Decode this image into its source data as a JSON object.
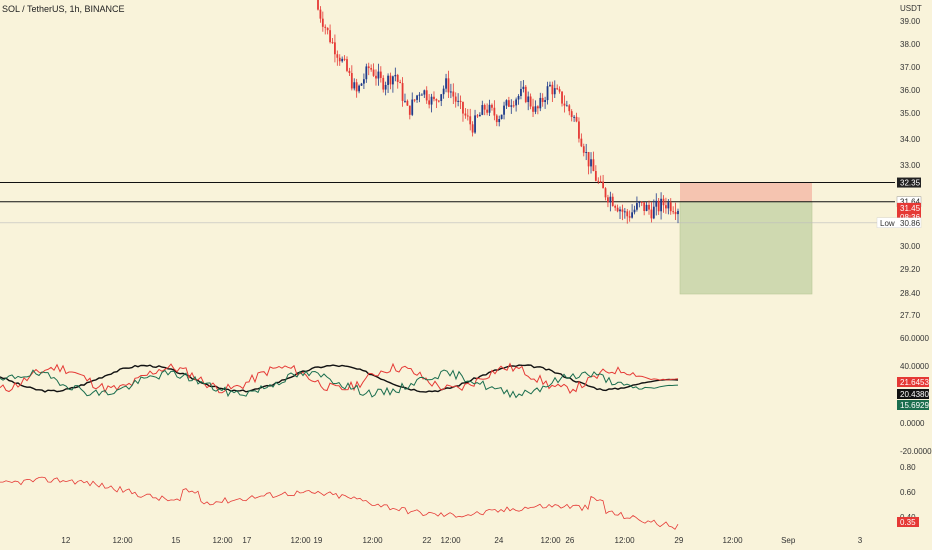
{
  "header": {
    "symbol_title": "SOL / TetherUS, 1h, BINANCE",
    "currency": "USDT"
  },
  "colors": {
    "background": "#f9f3da",
    "bull_candle": "#1e3a8a",
    "bear_candle": "#e53935",
    "stop_zone": "#f5c4b0",
    "target_zone": "#cfd9b0",
    "black_line": "#111111",
    "green_line": "#1b6e4f",
    "red_line": "#e53935"
  },
  "price_axis": {
    "ticks": [
      "39.00",
      "38.00",
      "37.00",
      "36.00",
      "35.00",
      "34.00",
      "33.00",
      "30.00",
      "29.20",
      "28.40",
      "27.70"
    ],
    "horizontal_levels": [
      32.35,
      31.64
    ],
    "low_line": 30.86,
    "tags": [
      {
        "text": "32.35",
        "style": "dark",
        "price": 32.35
      },
      {
        "text": "31.64",
        "style": "light",
        "price": 31.64
      },
      {
        "text": "31.45",
        "style": "red",
        "price": 31.45
      },
      {
        "text": "08:36",
        "style": "red-sub",
        "price": 31.45
      }
    ],
    "low_label": {
      "label": "Low",
      "value": "30.86"
    }
  },
  "position": {
    "entry": 31.64,
    "stop": 32.35,
    "target": 28.4
  },
  "indicator_1": {
    "ticks": [
      "60.0000",
      "40.0000",
      "0.0000",
      "-20.0000"
    ],
    "tags": [
      {
        "text": "21.6453",
        "style": "red"
      },
      {
        "text": "20.4380",
        "style": "black"
      },
      {
        "text": "15.6929",
        "style": "green"
      }
    ]
  },
  "indicator_2": {
    "ticks": [
      "0.80",
      "0.60",
      "0.40"
    ],
    "tags": [
      {
        "text": "0.35",
        "style": "red"
      }
    ]
  },
  "time_axis": {
    "labels": [
      "12",
      "12:00",
      "15",
      "12:00",
      "17",
      "12:00",
      "19",
      "12:00",
      "22",
      "12:00",
      "24",
      "12:00",
      "26",
      "12:00",
      "29",
      "12:00",
      "Sep",
      "3"
    ]
  },
  "chart_data": {
    "type": "candlestick",
    "series": [
      {
        "name": "candles",
        "close": [
          39.5,
          38.2,
          37.2,
          36.0,
          37.1,
          36.4,
          36.8,
          35.2,
          36.2,
          35.6,
          36.4,
          35.4,
          34.6,
          35.4,
          35.0,
          35.7,
          36.0,
          35.2,
          36.3,
          35.7,
          34.9,
          33.2,
          32.1,
          31.7,
          31.1,
          31.5,
          31.3,
          31.6,
          31.45
        ]
      }
    ]
  }
}
